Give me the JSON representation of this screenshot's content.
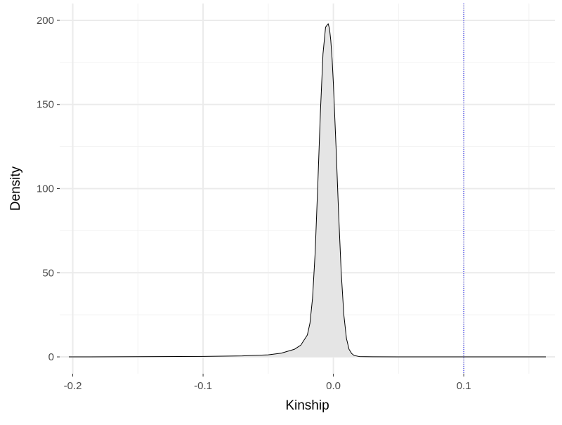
{
  "chart_data": {
    "type": "area",
    "title": "",
    "xlabel": "Kinship",
    "ylabel": "Density",
    "xlim": [
      -0.21,
      0.17
    ],
    "ylim": [
      -10,
      210
    ],
    "x_ticks": [
      -0.2,
      -0.1,
      0.0,
      0.1
    ],
    "x_tick_labels": [
      "-0.2",
      "-0.1",
      "0.0",
      "0.1"
    ],
    "y_ticks": [
      0,
      50,
      100,
      150,
      200
    ],
    "y_tick_labels": [
      "0",
      "50",
      "100",
      "150",
      "200"
    ],
    "grid": true,
    "legend": "none",
    "colors": {
      "fill": "#e5e5e5",
      "line": "#000000",
      "reference_line": "#0000ff",
      "grid_major": "#ebebeb",
      "grid_minor": "#f2f2f2"
    },
    "reference_line": {
      "axis": "x",
      "value": 0.1,
      "style": "dotted"
    },
    "series": [
      {
        "x": [
          -0.203,
          -0.15,
          -0.1,
          -0.07,
          -0.05,
          -0.04,
          -0.03,
          -0.025,
          -0.02,
          -0.018,
          -0.016,
          -0.014,
          -0.012,
          -0.01,
          -0.008,
          -0.006,
          -0.004,
          -0.003,
          -0.002,
          -0.001,
          0.0,
          0.002,
          0.004,
          0.006,
          0.008,
          0.01,
          0.012,
          0.014,
          0.016,
          0.02,
          0.03,
          0.05,
          0.1,
          0.163
        ],
        "y": [
          0,
          0.1,
          0.3,
          0.6,
          1.2,
          2.2,
          4.5,
          7,
          13,
          20,
          35,
          62,
          102,
          145,
          180,
          196,
          198,
          195,
          188,
          177,
          162,
          125,
          85,
          50,
          25,
          11,
          4.5,
          2,
          0.8,
          0.2,
          0.05,
          0,
          0,
          0
        ]
      }
    ]
  }
}
